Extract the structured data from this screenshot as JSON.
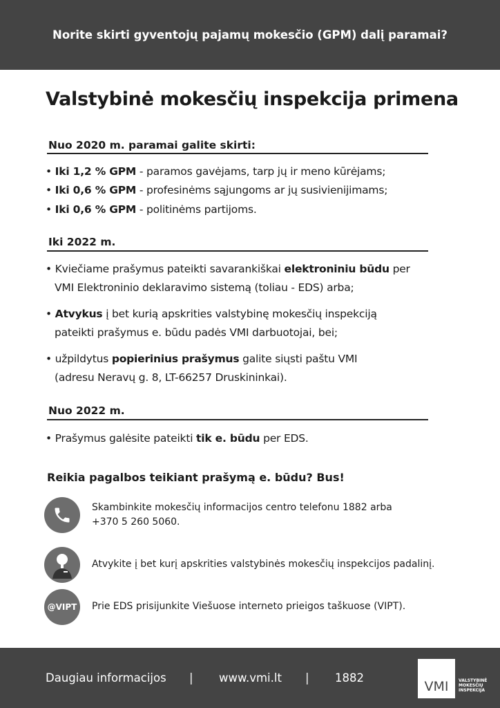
{
  "header": {
    "text": "Norite skirti gyventojų pajamų mokesčio (GPM) dalį paramai?"
  },
  "title": "Valstybinė mokesčių inspekcija primena",
  "sections": [
    {
      "heading": "Nuo 2020 m. paramai galite skirti:",
      "bullets": [
        {
          "bold": "Iki 1,2 % GPM",
          "text": " - paramos gavėjams, tarp jų ir meno kūrėjams;"
        },
        {
          "bold": "Iki 0,6 % GPM",
          "text": " - profesinėms sąjungoms ar jų susivienijimams;"
        },
        {
          "bold": "Iki 0,6 % GPM",
          "text": " - politinėms partijoms."
        }
      ]
    },
    {
      "heading": "Iki 2022 m.",
      "bullets": [
        {
          "pre": "Kviečiame prašymus pateikti savarankiškai ",
          "bold": "elektroniniu būdu",
          "post": " per",
          "cont": "VMI Elektroninio deklaravimo sistemą (toliau - EDS) arba;"
        },
        {
          "pre": "",
          "bold": "Atvykus",
          "post": " į bet kurią apskrities valstybinę mokesčių inspekciją",
          "cont": "pateikti prašymus e. būdu padės VMI darbuotojai, bei;"
        },
        {
          "pre": "užpildytus ",
          "bold": "popierinius prašymus",
          "post": " galite siųsti paštu VMI",
          "cont": "(adresu Neravų g. 8, LT-66257 Druskininkai)."
        }
      ]
    },
    {
      "heading": "Nuo 2022 m.",
      "bullets": [
        {
          "pre": "Prašymus galėsite pateikti ",
          "bold": "tik e. būdu",
          "post": " per EDS."
        }
      ]
    }
  ],
  "help": {
    "heading": "Reikia pagalbos teikiant prašymą e. būdu? Bus!",
    "items": [
      {
        "icon": "phone-icon",
        "line1": "Skambinkite mokesčių informacijos centro telefonu 1882 arba",
        "line2": "+370 5 260 5060."
      },
      {
        "icon": "person-icon",
        "line1": "Atvykite į bet kurį apskrities valstybinės mokesčių inspekcijos padalinį."
      },
      {
        "icon": "vipt-icon",
        "label": "@VIPT",
        "line1": "Prie EDS prisijunkite Viešuose interneto prieigos taškuose (VIPT)."
      }
    ]
  },
  "footer": {
    "info": "Daugiau informacijos",
    "sep": "|",
    "url": "www.vmi.lt",
    "phone": "1882",
    "logo": "VMI",
    "logo_text": [
      "VALSTYBINĖ",
      "MOKESČIŲ",
      "INSPEKCIJA"
    ]
  },
  "colors": {
    "dark_band": "#444444",
    "icon_bg": "#6d6d6d"
  }
}
